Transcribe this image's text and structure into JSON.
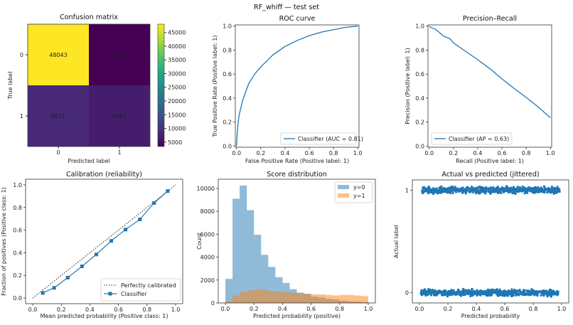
{
  "suptitle": "RF_whiff — test set",
  "colors": {
    "blue": "#1f77b4",
    "orange": "#ff7f0e",
    "frame": "#333333"
  },
  "chart_data": [
    {
      "type": "heatmap",
      "title": "Confusion matrix",
      "xlabel": "Predicted label",
      "ylabel": "True label",
      "x_categories": [
        "0",
        "1"
      ],
      "y_categories": [
        "0",
        "1"
      ],
      "values": [
        [
          48043,
          3384
        ],
        [
          8631,
          6983
        ]
      ],
      "colormap": "viridis",
      "colorbar_ticks": [
        "5000",
        "10000",
        "15000",
        "20000",
        "25000",
        "30000",
        "35000",
        "40000",
        "45000"
      ]
    },
    {
      "type": "line",
      "title": "ROC curve",
      "xlabel": "False Positive Rate (Positive label: 1)",
      "ylabel": "True Positive Rate (Positive label: 1)",
      "xlim": [
        0,
        1
      ],
      "ylim": [
        0,
        1
      ],
      "xticks": [
        "0.0",
        "0.2",
        "0.4",
        "0.6",
        "0.8",
        "1.0"
      ],
      "yticks": [
        "0.0",
        "0.2",
        "0.4",
        "0.6",
        "0.8",
        "1.0"
      ],
      "legend": "bottom-right",
      "series": [
        {
          "name": "Classifier (AUC = 0.81)",
          "x": [
            0,
            0.005,
            0.01,
            0.02,
            0.05,
            0.1,
            0.15,
            0.2,
            0.3,
            0.4,
            0.5,
            0.6,
            0.7,
            0.8,
            0.9,
            1.0
          ],
          "y": [
            0,
            0.1,
            0.16,
            0.25,
            0.38,
            0.52,
            0.6,
            0.66,
            0.76,
            0.83,
            0.88,
            0.92,
            0.95,
            0.97,
            0.99,
            1.0
          ]
        }
      ]
    },
    {
      "type": "line",
      "title": "Precision–Recall",
      "xlabel": "Recall (Positive label: 1)",
      "ylabel": "Precision (Positive label: 1)",
      "xlim": [
        0,
        1
      ],
      "ylim": [
        0,
        1
      ],
      "xticks": [
        "0.0",
        "0.2",
        "0.4",
        "0.6",
        "0.8",
        "1.0"
      ],
      "yticks": [
        "0.0",
        "0.2",
        "0.4",
        "0.6",
        "0.8",
        "1.0"
      ],
      "legend": "bottom-left",
      "series": [
        {
          "name": "Classifier (AP = 0.63)",
          "x": [
            0,
            0.02,
            0.05,
            0.08,
            0.12,
            0.17,
            0.2,
            0.3,
            0.4,
            0.5,
            0.6,
            0.7,
            0.8,
            0.9,
            0.95,
            1.0
          ],
          "y": [
            1.0,
            0.985,
            0.975,
            0.95,
            0.915,
            0.895,
            0.86,
            0.79,
            0.72,
            0.645,
            0.56,
            0.48,
            0.405,
            0.325,
            0.28,
            0.235
          ]
        }
      ]
    },
    {
      "type": "line",
      "title": "Calibration (reliability)",
      "xlabel": "Mean predicted probability (Positive class: 1)",
      "ylabel": "Fraction of positives (Positive class: 1)",
      "xlim": [
        0,
        1
      ],
      "ylim": [
        0,
        1
      ],
      "xticks": [
        "0.0",
        "0.2",
        "0.4",
        "0.6",
        "0.8",
        "1.0"
      ],
      "yticks": [
        "0.0",
        "0.2",
        "0.4",
        "0.6",
        "0.8",
        "1.0"
      ],
      "legend": "bottom-right",
      "series": [
        {
          "name": "Perfectly calibrated",
          "x": [
            0,
            1
          ],
          "y": [
            0,
            1
          ]
        },
        {
          "name": "Classifier",
          "x": [
            0.07,
            0.15,
            0.245,
            0.345,
            0.445,
            0.55,
            0.65,
            0.75,
            0.85,
            0.945
          ],
          "y": [
            0.045,
            0.09,
            0.18,
            0.28,
            0.385,
            0.505,
            0.605,
            0.695,
            0.84,
            0.945
          ]
        }
      ]
    },
    {
      "type": "bar",
      "title": "Score distribution",
      "xlabel": "Predicted probability (positive)",
      "ylabel": "Count",
      "bin_edges": [
        0,
        0.05,
        0.1,
        0.15,
        0.2,
        0.25,
        0.3,
        0.35,
        0.4,
        0.45,
        0.5,
        0.55,
        0.6,
        0.65,
        0.7,
        0.75,
        0.8,
        0.85,
        0.9,
        0.95,
        1.0
      ],
      "xticks": [
        "0.0",
        "0.2",
        "0.4",
        "0.6",
        "0.8",
        "1.0"
      ],
      "yticks": [
        "0",
        "2000",
        "4000",
        "6000",
        "8000",
        "10000"
      ],
      "legend": "top-right",
      "series": [
        {
          "name": "y=0",
          "values": [
            2100,
            9100,
            10250,
            8100,
            5950,
            4200,
            3150,
            2250,
            1750,
            1200,
            900,
            800,
            550,
            480,
            350,
            300,
            200,
            150,
            100,
            80
          ]
        },
        {
          "name": "y=1",
          "values": [
            150,
            650,
            950,
            1100,
            1200,
            1150,
            1050,
            1000,
            950,
            900,
            850,
            800,
            750,
            750,
            700,
            650,
            700,
            700,
            650,
            600
          ]
        }
      ]
    },
    {
      "type": "scatter",
      "title": "Actual vs predicted (jittered)",
      "xlabel": "Predicted probability",
      "ylabel": "Actual label",
      "xticks": [
        "0.0",
        "0.2",
        "0.4",
        "0.6",
        "0.8",
        "1.0"
      ],
      "yticks": [
        "0",
        "1"
      ],
      "series": [
        {
          "label": 1,
          "x_range": [
            0.02,
            0.99
          ]
        },
        {
          "label": 0,
          "x_range": [
            0.01,
            0.98
          ]
        }
      ]
    }
  ]
}
